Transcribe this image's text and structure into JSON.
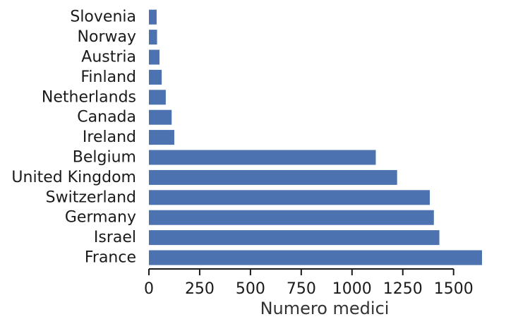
{
  "chart_data": {
    "type": "bar",
    "orientation": "horizontal",
    "categories": [
      "Slovenia",
      "Norway",
      "Austria",
      "Finland",
      "Netherlands",
      "Canada",
      "Ireland",
      "Belgium",
      "United Kingdom",
      "Switzerland",
      "Germany",
      "Israel",
      "France"
    ],
    "values": [
      38,
      40,
      52,
      63,
      83,
      112,
      125,
      1117,
      1222,
      1383,
      1403,
      1430,
      1640
    ],
    "xlabel": "Numero medici",
    "ylabel": "",
    "xlim": [
      0,
      1640
    ],
    "xticks": [
      0,
      250,
      500,
      750,
      1000,
      1250,
      1500
    ],
    "bar_color": "#4c72b0",
    "grid": false
  }
}
